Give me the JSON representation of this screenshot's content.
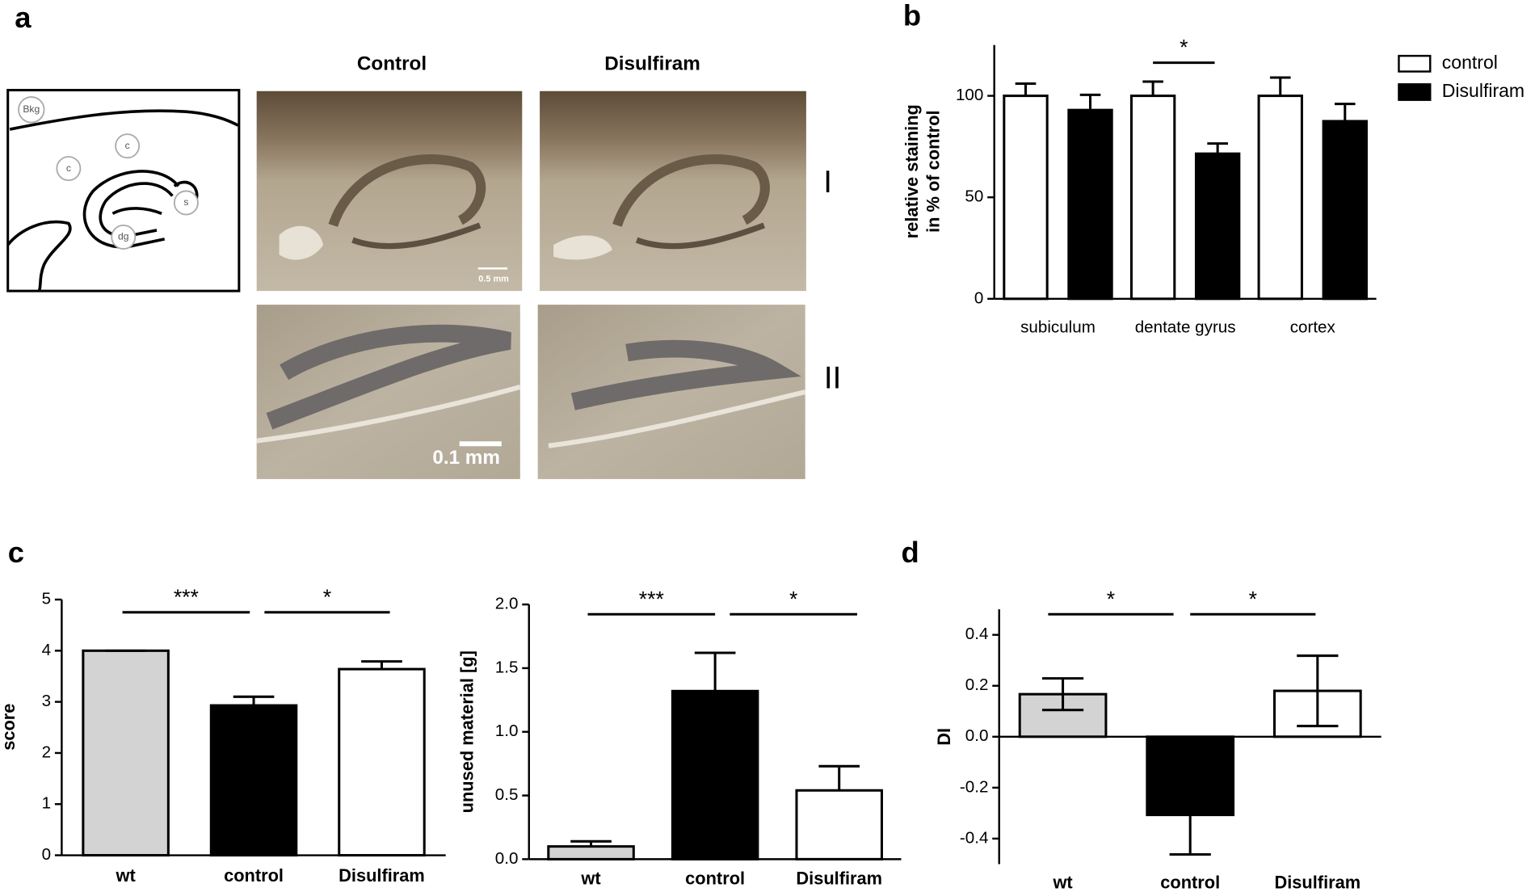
{
  "panel_labels": [
    "a",
    "b",
    "c",
    "d"
  ],
  "histology": {
    "columns": [
      "Control",
      "Disulfiram"
    ],
    "rows": [
      "I",
      "II"
    ],
    "scale_bars": [
      "0.5 mm",
      "0.1 mm"
    ],
    "regions": [
      "Bkg",
      "c",
      "c",
      "s",
      "dg"
    ]
  },
  "chart_data": [
    {
      "type": "bar",
      "ylabel": [
        "relative staining",
        "in % of control"
      ],
      "categories": [
        "subiculum",
        "dentate gyrus",
        "cortex"
      ],
      "series": [
        {
          "name": "control",
          "color": "#ffffff",
          "values": [
            100,
            100,
            100
          ],
          "errors": [
            6,
            7,
            9
          ]
        },
        {
          "name": "Disulfiram",
          "color": "#000000",
          "values": [
            93,
            71.5,
            87.5
          ],
          "errors": [
            7.5,
            5,
            8.5
          ]
        }
      ],
      "ylim": [
        0,
        125
      ],
      "yticks": [
        0,
        50,
        100
      ],
      "legend": "right",
      "error_bars": "one-sided",
      "annotations": [
        "*"
      ]
    },
    {
      "type": "bar",
      "ylabel": "score",
      "categories": [
        "wt",
        "control",
        "Disulfiram"
      ],
      "values": [
        4,
        2.93,
        3.64
      ],
      "errors": [
        0,
        0.17,
        0.15
      ],
      "colors": [
        "#d3d3d3",
        "#000000",
        "#ffffff"
      ],
      "ylim": [
        0,
        5
      ],
      "yticks": [
        0,
        1,
        2,
        3,
        4,
        5
      ],
      "error_bars": "one-sided",
      "annotations": [
        "***",
        "*"
      ]
    },
    {
      "type": "bar",
      "ylabel": "unused material [g]",
      "categories": [
        "wt",
        "control",
        "Disulfiram"
      ],
      "values": [
        0.1,
        1.32,
        0.54
      ],
      "errors": [
        0.04,
        0.3,
        0.19
      ],
      "colors": [
        "#d3d3d3",
        "#000000",
        "#ffffff"
      ],
      "ylim": [
        0,
        2
      ],
      "yticks": [
        {
          "value": 0,
          "label": "0.0"
        },
        0.5,
        {
          "value": 1,
          "label": "1.0"
        },
        1.5,
        {
          "value": 2,
          "label": "2.0"
        }
      ],
      "error_bars": "one-sided",
      "annotations": [
        "***",
        "*"
      ]
    },
    {
      "type": "bar",
      "ylabel": "DI",
      "categories": [
        "wt",
        "control",
        "Disulfiram"
      ],
      "values": [
        0.167,
        -0.307,
        0.18
      ],
      "errors": [
        0.062,
        0.155,
        0.138
      ],
      "colors": [
        "#d3d3d3",
        "#000000",
        "#ffffff"
      ],
      "ylim": [
        -0.5,
        0.5
      ],
      "yticks": [
        -0.4,
        -0.2,
        {
          "value": 0,
          "label": "0.0"
        },
        0.2,
        0.4
      ],
      "error_bars": "two-sided",
      "annotations": [
        "*",
        "*"
      ]
    }
  ]
}
